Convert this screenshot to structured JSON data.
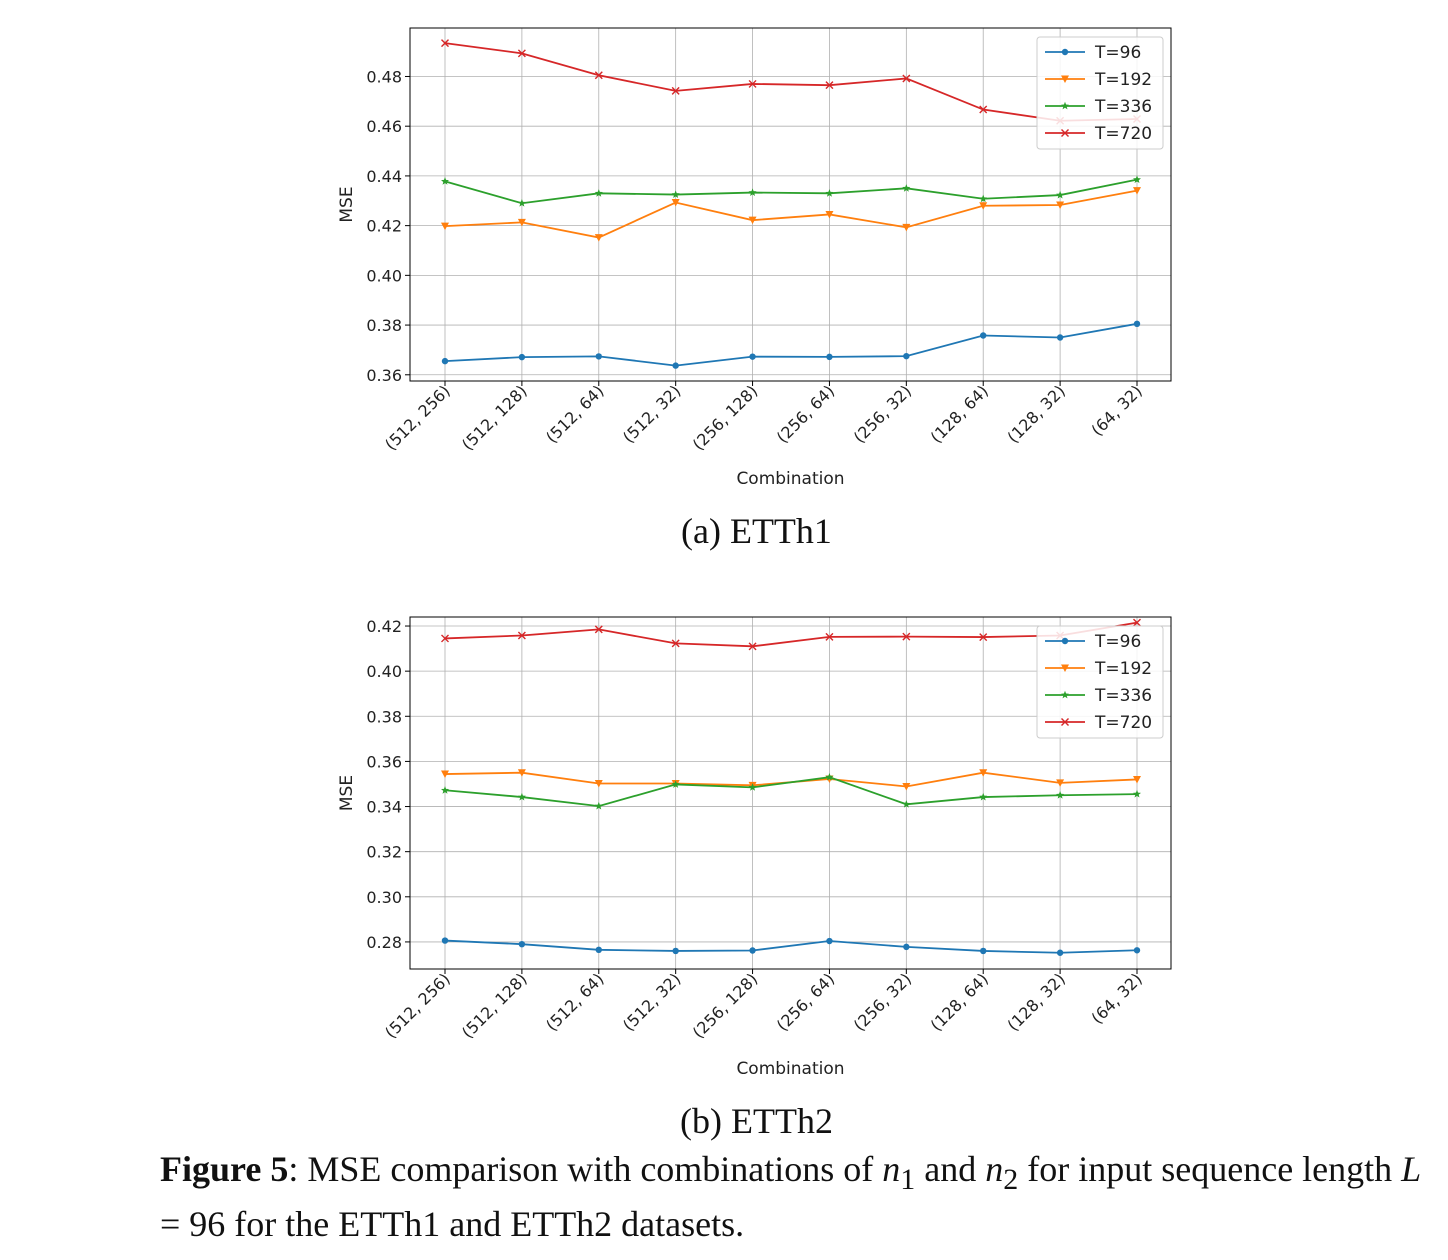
{
  "chart_data": [
    {
      "type": "line",
      "ylabel": "MSE",
      "xlabel": "Combination",
      "subcaption": "(a) ETTh1",
      "ylim": [
        0.3575,
        0.4995
      ],
      "yticks": [
        "0.36",
        "0.38",
        "0.40",
        "0.42",
        "0.44",
        "0.46",
        "0.48"
      ],
      "grid": true,
      "legend_position": "top-right",
      "categories": [
        "(512, 256)",
        "(512, 128)",
        "(512, 64)",
        "(512, 32)",
        "(256, 128)",
        "(256, 64)",
        "(256, 32)",
        "(128, 64)",
        "(128, 32)",
        "(64, 32)"
      ],
      "series": [
        {
          "name": "T=96",
          "color": "#1f77b4",
          "marker": "circle",
          "values": [
            0.3655,
            0.3671,
            0.3674,
            0.3637,
            0.3673,
            0.3672,
            0.3675,
            0.3758,
            0.375,
            0.3805
          ]
        },
        {
          "name": "T=192",
          "color": "#ff7f0e",
          "marker": "triangle-down",
          "values": [
            0.4198,
            0.4213,
            0.4152,
            0.4293,
            0.4222,
            0.4245,
            0.4193,
            0.428,
            0.4283,
            0.4341
          ]
        },
        {
          "name": "T=336",
          "color": "#2ca02c",
          "marker": "star",
          "values": [
            0.4378,
            0.429,
            0.433,
            0.4325,
            0.4333,
            0.433,
            0.435,
            0.4308,
            0.4323,
            0.4385
          ]
        },
        {
          "name": "T=720",
          "color": "#d62728",
          "marker": "x",
          "values": [
            0.4934,
            0.4893,
            0.4805,
            0.4742,
            0.477,
            0.4765,
            0.4792,
            0.4667,
            0.4622,
            0.4629
          ]
        }
      ]
    },
    {
      "type": "line",
      "ylabel": "MSE",
      "xlabel": "Combination",
      "subcaption": "(b) ETTh2",
      "ylim": [
        0.268,
        0.424
      ],
      "yticks": [
        "0.28",
        "0.30",
        "0.32",
        "0.34",
        "0.36",
        "0.38",
        "0.40",
        "0.42"
      ],
      "grid": true,
      "legend_position": "top-right",
      "categories": [
        "(512, 256)",
        "(512, 128)",
        "(512, 64)",
        "(512, 32)",
        "(256, 128)",
        "(256, 64)",
        "(256, 32)",
        "(128, 64)",
        "(128, 32)",
        "(64, 32)"
      ],
      "series": [
        {
          "name": "T=96",
          "color": "#1f77b4",
          "marker": "circle",
          "values": [
            0.2806,
            0.279,
            0.2765,
            0.276,
            0.2762,
            0.2804,
            0.2778,
            0.276,
            0.2752,
            0.2763
          ]
        },
        {
          "name": "T=192",
          "color": "#ff7f0e",
          "marker": "triangle-down",
          "values": [
            0.3544,
            0.355,
            0.3502,
            0.3502,
            0.3494,
            0.3522,
            0.3489,
            0.355,
            0.3505,
            0.352
          ]
        },
        {
          "name": "T=336",
          "color": "#2ca02c",
          "marker": "star",
          "values": [
            0.3472,
            0.3442,
            0.3402,
            0.3498,
            0.3485,
            0.353,
            0.341,
            0.3442,
            0.345,
            0.3455
          ]
        },
        {
          "name": "T=720",
          "color": "#d62728",
          "marker": "x",
          "values": [
            0.4145,
            0.4158,
            0.4185,
            0.4123,
            0.411,
            0.4152,
            0.4153,
            0.4151,
            0.4158,
            0.4215
          ]
        }
      ]
    }
  ],
  "caption": {
    "label": "Figure 5",
    "text_1": ": MSE comparison with combinations of ",
    "var_1": "n",
    "sub_1": "1",
    "text_2": " and ",
    "var_2": "n",
    "sub_2": "2",
    "text_3": " for input sequence length ",
    "var_3": "L",
    "text_4": " = 96 for the ETTh1 and ETTh2 datasets."
  }
}
